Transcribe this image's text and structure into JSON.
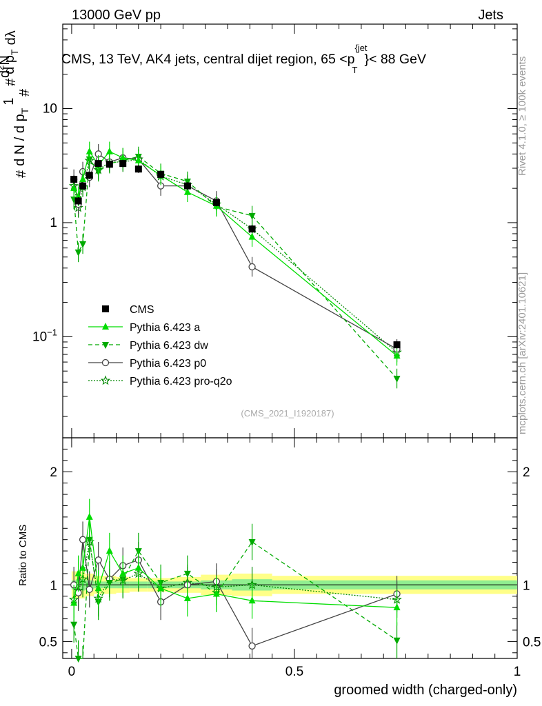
{
  "header": {
    "left": "13000 GeV pp",
    "right": "Jets"
  },
  "title": "CMS, 13 TeV, AK4 jets, central dijet region, 65 <p_T^{jet}< 88 GeV",
  "watermark_id": "(CMS_2021_I1920187)",
  "side_rivet": "Rivet 4.1.0, ≥ 100k events",
  "side_mcplots": "mcplots.cern.ch [arXiv:2401.10621]",
  "colors": {
    "cms": "#000000",
    "a": "#00dd00",
    "dw": "#00aa00",
    "p0": "#444444",
    "q2o": "#008800",
    "band_stat": "#90ee90",
    "band_total": "#ffff88"
  },
  "chart_data": [
    {
      "type": "scatter",
      "panel": "main",
      "yscale": "log",
      "ylabel": "1/dN/dp_T # d²N/dp_T dλ",
      "ylim": [
        0.013,
        55
      ],
      "xlim": [
        -0.02,
        1.0
      ],
      "y_tick_labels": [
        "10⁻¹",
        "1",
        "10"
      ],
      "legend_position": "middle-left",
      "series": [
        {
          "key": "cms",
          "name": "CMS",
          "marker": "square",
          "line": "none",
          "x": [
            0.005,
            0.015,
            0.025,
            0.04,
            0.06,
            0.085,
            0.115,
            0.15,
            0.2,
            0.26,
            0.325,
            0.405,
            0.73
          ],
          "y": [
            2.4,
            1.55,
            2.1,
            2.6,
            3.3,
            3.25,
            3.3,
            2.95,
            2.65,
            2.1,
            1.5,
            0.88,
            0.085
          ]
        },
        {
          "key": "a",
          "name": "Pythia 6.423 a",
          "marker": "triangle-up",
          "line": "solid",
          "x": [
            0.005,
            0.015,
            0.025,
            0.04,
            0.06,
            0.085,
            0.115,
            0.15,
            0.2,
            0.26,
            0.325,
            0.405,
            0.73
          ],
          "y": [
            2.0,
            1.7,
            2.4,
            4.2,
            3.2,
            4.2,
            3.7,
            3.5,
            2.6,
            1.85,
            1.4,
            0.75,
            0.068
          ]
        },
        {
          "key": "dw",
          "name": "Pythia 6.423 dw",
          "marker": "triangle-down",
          "line": "dashed",
          "x": [
            0.005,
            0.015,
            0.025,
            0.04,
            0.06,
            0.085,
            0.115,
            0.15,
            0.2,
            0.26,
            0.325,
            0.405,
            0.73
          ],
          "y": [
            1.6,
            0.55,
            0.65,
            3.6,
            2.8,
            3.3,
            3.5,
            3.8,
            2.7,
            2.3,
            1.38,
            1.15,
            0.043
          ]
        },
        {
          "key": "p0",
          "name": "Pythia 6.423 p0",
          "marker": "circle-open",
          "line": "solid",
          "x": [
            0.005,
            0.015,
            0.025,
            0.04,
            0.06,
            0.085,
            0.115,
            0.15,
            0.2,
            0.26,
            0.325,
            0.405,
            0.73
          ],
          "y": [
            2.4,
            1.45,
            2.8,
            2.5,
            4.0,
            3.4,
            3.7,
            3.6,
            2.1,
            2.1,
            1.55,
            0.41,
            0.078
          ]
        },
        {
          "key": "q2o",
          "name": "Pythia 6.423 pro-q2o",
          "marker": "star-open",
          "line": "dotted",
          "x": [
            0.005,
            0.015,
            0.025,
            0.04,
            0.06,
            0.085,
            0.115,
            0.15,
            0.2,
            0.26,
            0.325,
            0.405,
            0.73
          ],
          "y": [
            2.1,
            1.35,
            2.05,
            3.5,
            2.9,
            3.4,
            3.4,
            3.6,
            2.55,
            2.15,
            1.45,
            0.88,
            0.073
          ]
        }
      ]
    },
    {
      "type": "scatter",
      "panel": "ratio",
      "ylabel": "Ratio to CMS",
      "xlabel": "groomed width (charged-only)",
      "ylim": [
        0.35,
        2.3
      ],
      "xlim": [
        -0.02,
        1.0
      ],
      "x_tick_labels": [
        "0",
        "0.5",
        "1"
      ],
      "y_tick_labels": [
        "0.5",
        "1",
        "2"
      ],
      "band_edges": [
        0,
        0.01,
        0.02,
        0.03,
        0.05,
        0.07,
        0.1,
        0.13,
        0.17,
        0.23,
        0.29,
        0.36,
        0.45,
        1.0
      ],
      "band_stat": [
        0.04,
        0.05,
        0.05,
        0.04,
        0.03,
        0.03,
        0.03,
        0.03,
        0.03,
        0.03,
        0.04,
        0.05,
        0.04
      ],
      "band_total": [
        0.12,
        0.12,
        0.12,
        0.1,
        0.08,
        0.08,
        0.07,
        0.06,
        0.06,
        0.07,
        0.09,
        0.1,
        0.08
      ],
      "series": [
        {
          "key": "a",
          "x": [
            0.005,
            0.015,
            0.025,
            0.04,
            0.06,
            0.085,
            0.115,
            0.15,
            0.2,
            0.26,
            0.325,
            0.405,
            0.73
          ],
          "y": [
            0.84,
            1.1,
            1.15,
            1.6,
            0.97,
            1.3,
            1.1,
            1.15,
            0.97,
            0.88,
            0.92,
            0.86,
            0.8
          ]
        },
        {
          "key": "dw",
          "x": [
            0.005,
            0.015,
            0.025,
            0.04,
            0.06,
            0.085,
            0.115,
            0.15,
            0.2,
            0.26,
            0.325,
            0.405,
            0.73
          ],
          "y": [
            0.65,
            0.35,
            0.3,
            1.4,
            0.85,
            1.02,
            1.05,
            1.3,
            1.02,
            1.1,
            0.92,
            1.38,
            0.51
          ]
        },
        {
          "key": "p0",
          "x": [
            0.005,
            0.015,
            0.025,
            0.04,
            0.06,
            0.085,
            0.115,
            0.15,
            0.2,
            0.26,
            0.325,
            0.405,
            0.73
          ],
          "y": [
            1.0,
            0.93,
            1.4,
            0.96,
            1.22,
            1.05,
            1.17,
            1.22,
            0.85,
            1.0,
            1.03,
            0.46,
            0.92
          ]
        },
        {
          "key": "q2o",
          "x": [
            0.005,
            0.015,
            0.025,
            0.04,
            0.06,
            0.085,
            0.115,
            0.15,
            0.2,
            0.26,
            0.325,
            0.405,
            0.73
          ],
          "y": [
            0.87,
            0.95,
            1.05,
            1.38,
            0.88,
            1.05,
            1.04,
            1.1,
            0.97,
            1.02,
            0.98,
            1.0,
            0.87
          ]
        }
      ]
    }
  ]
}
